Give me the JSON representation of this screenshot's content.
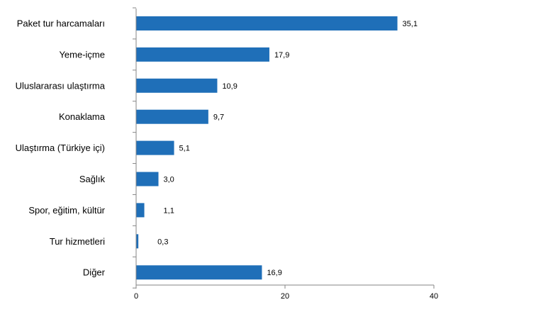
{
  "chart_data": {
    "type": "bar",
    "orientation": "horizontal",
    "title": "",
    "xlabel": "",
    "ylabel": "",
    "categories": [
      "Paket tur harcamaları",
      "Yeme-içme",
      "Uluslararası ulaştırma",
      "Konaklama",
      "Ulaştırma (Türkiye içi)",
      "Sağlık",
      "Spor, eğitim, kültür",
      "Tur hizmetleri",
      "Diğer"
    ],
    "values": [
      35.1,
      17.9,
      10.9,
      9.7,
      5.1,
      3.0,
      1.1,
      0.3,
      16.9
    ],
    "value_labels": [
      "35,1",
      "17,9",
      "10,9",
      "9,7",
      "5,1",
      "3,0",
      "1,1",
      "0,3",
      "16,9"
    ],
    "xlim": [
      0,
      40
    ],
    "xticks": [
      0,
      20,
      40
    ],
    "grid": false,
    "legend": "none",
    "bar_color": "#1f6fb8",
    "axis_color": "#868686"
  }
}
